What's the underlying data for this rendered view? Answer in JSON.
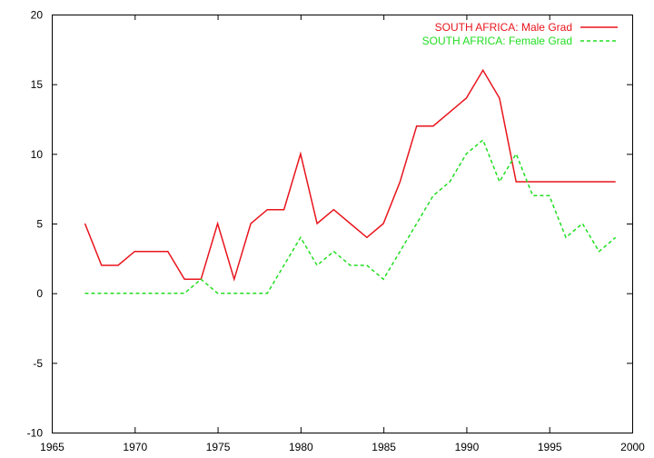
{
  "chart_data": {
    "type": "line",
    "title": "",
    "xlabel": "",
    "ylabel": "",
    "xlim": [
      1965,
      2000
    ],
    "ylim": [
      -10,
      20
    ],
    "x_ticks": [
      1965,
      1970,
      1975,
      1980,
      1985,
      1990,
      1995,
      2000
    ],
    "y_ticks": [
      -10,
      -5,
      0,
      5,
      10,
      15,
      20
    ],
    "x_tick_labels": [
      "1965",
      "1970",
      "1975",
      "1980",
      "1985",
      "1990",
      "1995",
      "2000"
    ],
    "y_tick_labels": [
      "-10",
      "-5",
      "0",
      "5",
      "10",
      "15",
      "20"
    ],
    "grid": false,
    "legend_position": "top-right",
    "x": [
      1967,
      1968,
      1969,
      1970,
      1971,
      1972,
      1973,
      1974,
      1975,
      1976,
      1977,
      1978,
      1979,
      1980,
      1981,
      1982,
      1983,
      1984,
      1985,
      1986,
      1987,
      1988,
      1989,
      1990,
      1991,
      1992,
      1993,
      1994,
      1995,
      1996,
      1997,
      1998,
      1999
    ],
    "series": [
      {
        "name": "SOUTH AFRICA: Male Grad",
        "color": "#e8141c",
        "dash": "solid",
        "values": [
          5,
          2,
          2,
          3,
          3,
          3,
          1,
          1,
          5,
          1,
          5,
          6,
          6,
          10,
          5,
          6,
          5,
          4,
          5,
          8,
          12,
          12,
          13,
          14,
          16,
          14,
          8,
          8,
          8,
          8,
          8,
          8,
          8
        ]
      },
      {
        "name": "SOUTH AFRICA: Female Grad",
        "color": "#22dd22",
        "dash": "dashed",
        "values": [
          0,
          0,
          0,
          0,
          0,
          0,
          0,
          1,
          0,
          0,
          0,
          0,
          2,
          4,
          2,
          3,
          2,
          2,
          1,
          3,
          5,
          7,
          8,
          10,
          11,
          8,
          10,
          7,
          7,
          4,
          5,
          3,
          4
        ]
      }
    ]
  }
}
